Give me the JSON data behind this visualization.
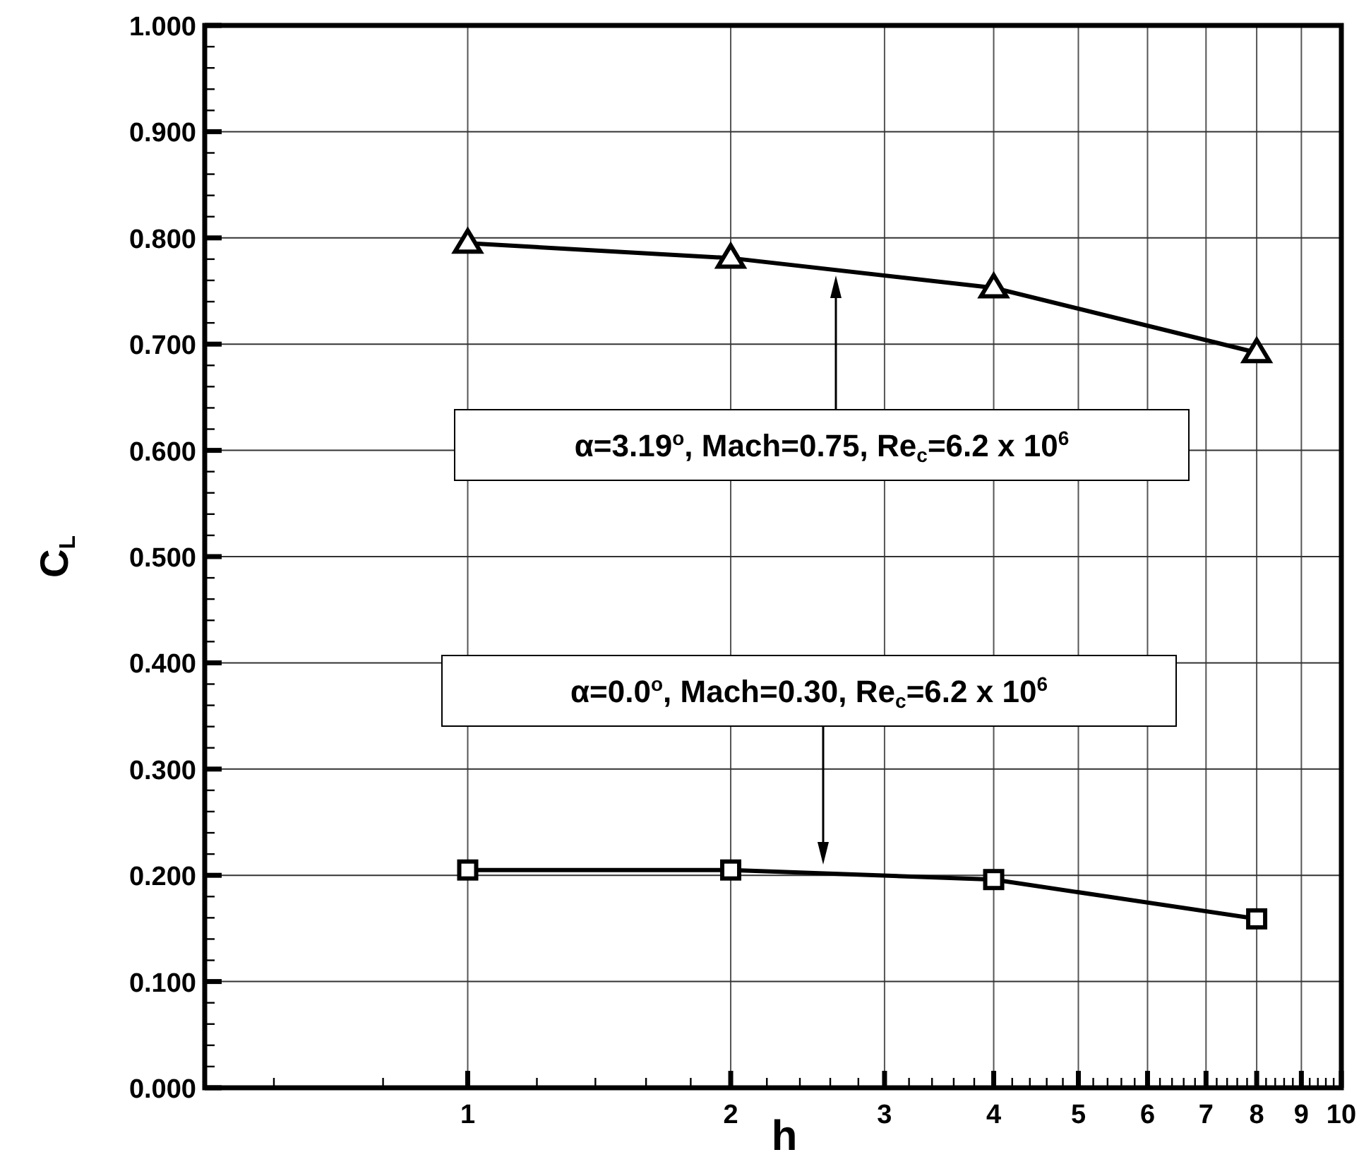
{
  "chart_data": {
    "type": "line",
    "xlabel": "h",
    "ylabel": "C$_{L}$",
    "log": "x",
    "grid": true,
    "line_style": "solid",
    "xlim": [
      0.5,
      10
    ],
    "ylim": [
      0,
      1
    ],
    "xticks": [
      {
        "value": 0.6,
        "label": null
      },
      {
        "value": 0.8,
        "label": null
      },
      1,
      {
        "value": 1.2,
        "label": null
      },
      {
        "value": 1.4,
        "label": null
      },
      {
        "value": 1.6,
        "label": null
      },
      {
        "value": 1.8,
        "label": null
      },
      2,
      {
        "value": 2.2,
        "label": null
      },
      {
        "value": 2.4,
        "label": null
      },
      {
        "value": 2.6,
        "label": null
      },
      {
        "value": 2.8,
        "label": null
      },
      3,
      {
        "value": 3.2,
        "label": null
      },
      {
        "value": 3.4,
        "label": null
      },
      {
        "value": 3.6,
        "label": null
      },
      {
        "value": 3.8,
        "label": null
      },
      4,
      {
        "value": 4.2,
        "label": null
      },
      {
        "value": 4.4,
        "label": null
      },
      {
        "value": 4.6,
        "label": null
      },
      {
        "value": 4.8,
        "label": null
      },
      5,
      {
        "value": 5.2,
        "label": null
      },
      {
        "value": 5.4,
        "label": null
      },
      {
        "value": 5.6,
        "label": null
      },
      {
        "value": 5.8,
        "label": null
      },
      6,
      {
        "value": 6.2,
        "label": null
      },
      {
        "value": 6.4,
        "label": null
      },
      {
        "value": 6.6,
        "label": null
      },
      {
        "value": 6.8,
        "label": null
      },
      7,
      {
        "value": 7.2,
        "label": null
      },
      {
        "value": 7.4,
        "label": null
      },
      {
        "value": 7.6,
        "label": null
      },
      {
        "value": 7.8,
        "label": null
      },
      8,
      {
        "value": 8.2,
        "label": null
      },
      {
        "value": 8.4,
        "label": null
      },
      {
        "value": 8.6,
        "label": null
      },
      {
        "value": 8.8,
        "label": null
      },
      9,
      {
        "value": 9.2,
        "label": null
      },
      {
        "value": 9.4,
        "label": null
      },
      {
        "value": 9.6,
        "label": null
      },
      {
        "value": 9.8,
        "label": null
      },
      10
    ],
    "yticks": [
      {
        "value": 0,
        "label": "0.000"
      },
      {
        "value": 0.02,
        "label": null
      },
      {
        "value": 0.04,
        "label": null
      },
      {
        "value": 0.06,
        "label": null
      },
      {
        "value": 0.08,
        "label": null
      },
      {
        "value": 0.1,
        "label": "0.100"
      },
      {
        "value": 0.12,
        "label": null
      },
      {
        "value": 0.14,
        "label": null
      },
      {
        "value": 0.16,
        "label": null
      },
      {
        "value": 0.18,
        "label": null
      },
      {
        "value": 0.2,
        "label": "0.200"
      },
      {
        "value": 0.22,
        "label": null
      },
      {
        "value": 0.24,
        "label": null
      },
      {
        "value": 0.26,
        "label": null
      },
      {
        "value": 0.28,
        "label": null
      },
      {
        "value": 0.3,
        "label": "0.300"
      },
      {
        "value": 0.32,
        "label": null
      },
      {
        "value": 0.34,
        "label": null
      },
      {
        "value": 0.36,
        "label": null
      },
      {
        "value": 0.38,
        "label": null
      },
      {
        "value": 0.4,
        "label": "0.400"
      },
      {
        "value": 0.42,
        "label": null
      },
      {
        "value": 0.44,
        "label": null
      },
      {
        "value": 0.46,
        "label": null
      },
      {
        "value": 0.48,
        "label": null
      },
      {
        "value": 0.5,
        "label": "0.500"
      },
      {
        "value": 0.52,
        "label": null
      },
      {
        "value": 0.54,
        "label": null
      },
      {
        "value": 0.56,
        "label": null
      },
      {
        "value": 0.58,
        "label": null
      },
      {
        "value": 0.6,
        "label": "0.600"
      },
      {
        "value": 0.62,
        "label": null
      },
      {
        "value": 0.64,
        "label": null
      },
      {
        "value": 0.66,
        "label": null
      },
      {
        "value": 0.68,
        "label": null
      },
      {
        "value": 0.7,
        "label": "0.700"
      },
      {
        "value": 0.72,
        "label": null
      },
      {
        "value": 0.74,
        "label": null
      },
      {
        "value": 0.76,
        "label": null
      },
      {
        "value": 0.78,
        "label": null
      },
      {
        "value": 0.8,
        "label": "0.800"
      },
      {
        "value": 0.82,
        "label": null
      },
      {
        "value": 0.84,
        "label": null
      },
      {
        "value": 0.86,
        "label": null
      },
      {
        "value": 0.88,
        "label": null
      },
      {
        "value": 0.9,
        "label": "0.900"
      },
      {
        "value": 0.92,
        "label": null
      },
      {
        "value": 0.94,
        "label": null
      },
      {
        "value": 0.96,
        "label": null
      },
      {
        "value": 0.98,
        "label": null
      },
      {
        "value": 1,
        "label": "1.000"
      }
    ],
    "series": [
      {
        "color": "#000000",
        "marker": "triangle",
        "x": [
          1,
          2,
          4,
          8
        ],
        "values": [
          0.795,
          0.781,
          0.753,
          0.692
        ]
      },
      {
        "color": "#000000",
        "marker": "square",
        "x": [
          1,
          2,
          4,
          8
        ],
        "values": [
          0.205,
          0.205,
          0.196,
          0.159
        ]
      }
    ],
    "annotations": [
      "α=3.19$^{o}$, Mach=0.75, Re$_{c}$=6.2 x 10$^{6}$",
      "α=0.0$^{o}$, Mach=0.30, Re$_{c}$=6.2 x 10$^{6}$"
    ]
  }
}
